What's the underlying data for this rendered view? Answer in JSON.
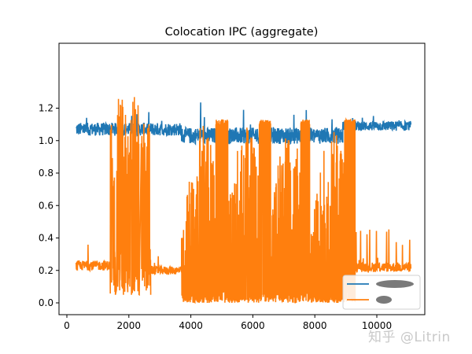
{
  "chart_data": {
    "type": "line",
    "title": "Colocation IPC (aggregate)",
    "xlabel": "",
    "ylabel": "",
    "xlim": [
      -300,
      11700
    ],
    "ylim": [
      -0.06,
      1.32
    ],
    "x_ticks": [
      0,
      2000,
      4000,
      6000,
      8000,
      10000
    ],
    "x_tick_labels": [
      "0",
      "2000",
      "4000",
      "6000",
      "8000",
      "10000"
    ],
    "y_ticks": [
      0.0,
      0.2,
      0.4,
      0.6,
      0.8,
      1.0,
      1.2
    ],
    "y_tick_labels": [
      "0.0",
      "0.2",
      "0.4",
      "0.6",
      "0.8",
      "1.0",
      "1.2"
    ],
    "grid": false,
    "legend_position": "lower right",
    "series": [
      {
        "name": "[redacted]",
        "color": "#1f77b4",
        "x_range": [
          300,
          11100
        ],
        "segments": [
          {
            "x": [
              300,
              3700
            ],
            "base": 1.07,
            "noise": 0.04,
            "spikes_to": 1.18
          },
          {
            "x": [
              3700,
              8900
            ],
            "base": 1.03,
            "noise": 0.05,
            "spikes_to": 1.25
          },
          {
            "x": [
              8900,
              11100
            ],
            "base": 1.09,
            "noise": 0.03,
            "spikes_to": 1.16
          }
        ]
      },
      {
        "name": "[redacted]",
        "color": "#ff7f0e",
        "x_range": [
          300,
          11100
        ],
        "segments": [
          {
            "x": [
              300,
              1400
            ],
            "base": 0.23,
            "noise": 0.03,
            "spikes_to": 0.45
          },
          {
            "x": [
              1400,
              2700
            ],
            "base": "oscillating 0.05-1.27 (5 bursts)",
            "peaks": [
              1.13,
              1.27,
              1.24,
              1.27,
              1.12
            ]
          },
          {
            "x": [
              2700,
              3700
            ],
            "base": 0.2,
            "noise": 0.03,
            "spikes_to": 0.37
          },
          {
            "x": [
              3700,
              9300
            ],
            "base": "oscillating 0.0-1.12 with plateaus",
            "plateaus": [
              [
                4800,
                5200
              ],
              [
                6200,
                6600
              ],
              [
                7550,
                7850
              ],
              [
                8950,
                9300
              ]
            ],
            "plateau_value": 1.12
          },
          {
            "x": [
              9300,
              11100
            ],
            "base": 0.22,
            "noise": 0.03,
            "spikes_to": 0.46
          }
        ]
      }
    ],
    "legend": {
      "entries": [
        {
          "label": "[redacted]",
          "color": "#1f77b4"
        },
        {
          "label": "[redacted]",
          "color": "#ff7f0e"
        }
      ]
    }
  },
  "watermark": "知乎 @Litrin"
}
